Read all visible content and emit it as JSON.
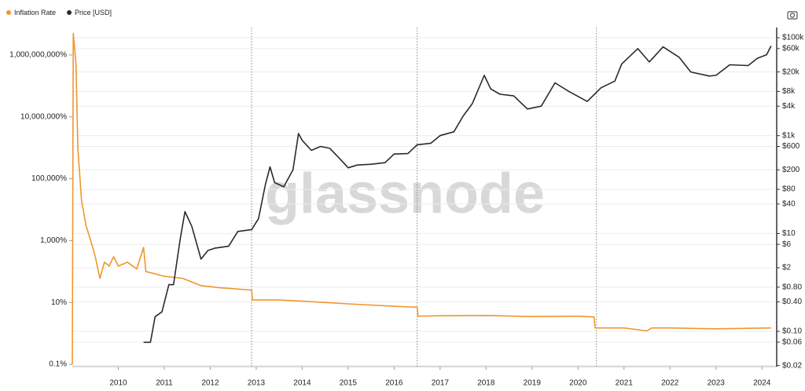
{
  "chart_data": {
    "type": "line",
    "watermark": "glassnode",
    "legend": "top-left",
    "ylog": true,
    "y2log": true,
    "grid": true,
    "xlim": [
      2009,
      2024.27
    ],
    "xticks": [
      2010,
      2011,
      2012,
      2013,
      2014,
      2015,
      2016,
      2017,
      2018,
      2019,
      2020,
      2021,
      2022,
      2023,
      2024
    ],
    "ylim": [
      0.084,
      7700000000
    ],
    "yticks": [
      {
        "value": 0.1,
        "label": "0.1%"
      },
      {
        "value": 10,
        "label": "10%"
      },
      {
        "value": 1000,
        "label": "1,000%"
      },
      {
        "value": 100000,
        "label": "100,000%"
      },
      {
        "value": 10000000,
        "label": "10,000,000%"
      },
      {
        "value": 1000000000,
        "label": "1,000,000,000%"
      }
    ],
    "y2lim": [
      0.019,
      162000
    ],
    "y2ticks": [
      {
        "value": 100000,
        "label": "$100k"
      },
      {
        "value": 60000,
        "label": "$60k"
      },
      {
        "value": 20000,
        "label": "$20k"
      },
      {
        "value": 8000,
        "label": "$8k"
      },
      {
        "value": 4000,
        "label": "$4k"
      },
      {
        "value": 1000,
        "label": "$1k"
      },
      {
        "value": 600,
        "label": "$600"
      },
      {
        "value": 200,
        "label": "$200"
      },
      {
        "value": 80,
        "label": "$80"
      },
      {
        "value": 40,
        "label": "$40"
      },
      {
        "value": 10,
        "label": "$10"
      },
      {
        "value": 6,
        "label": "$6"
      },
      {
        "value": 2,
        "label": "$2"
      },
      {
        "value": 0.8,
        "label": "$0.80"
      },
      {
        "value": 0.4,
        "label": "$0.40"
      },
      {
        "value": 0.1,
        "label": "$0.10"
      },
      {
        "value": 0.06,
        "label": "$0.06"
      },
      {
        "value": 0.02,
        "label": "$0.02"
      }
    ],
    "vlines": [
      2012.9,
      2016.5,
      2020.4
    ],
    "series": [
      {
        "name": "Inflation Rate",
        "color": "#f0962e",
        "x": [
          2009.0,
          2009.02,
          2009.08,
          2009.12,
          2009.2,
          2009.3,
          2009.4,
          2009.5,
          2009.6,
          2009.7,
          2009.8,
          2009.9,
          2010.0,
          2010.2,
          2010.4,
          2010.55,
          2010.6,
          2011.0,
          2011.4,
          2011.8,
          2012.2,
          2012.9,
          2012.92,
          2013.5,
          2014.0,
          2015.0,
          2016.0,
          2016.5,
          2016.52,
          2017.0,
          2018.0,
          2019.0,
          2020.0,
          2020.35,
          2020.37,
          2021.0,
          2021.5,
          2021.6,
          2022.0,
          2023.0,
          2024.2
        ],
        "values": [
          0.1,
          5000000000,
          500000000,
          1000000,
          20000,
          3000,
          1000,
          300,
          60,
          200,
          150,
          300,
          150,
          200,
          120,
          600,
          100,
          70,
          60,
          35,
          30,
          25,
          12,
          12,
          11,
          9,
          7.5,
          7,
          3.6,
          3.7,
          3.8,
          3.5,
          3.6,
          3.4,
          1.5,
          1.5,
          1.2,
          1.5,
          1.5,
          1.4,
          1.5
        ]
      },
      {
        "name": "Price [USD]",
        "color": "#2b2b2b",
        "axis": "y2",
        "x": [
          2010.55,
          2010.7,
          2010.8,
          2010.95,
          2011.1,
          2011.2,
          2011.35,
          2011.45,
          2011.6,
          2011.8,
          2011.95,
          2012.1,
          2012.4,
          2012.6,
          2012.9,
          2013.05,
          2013.2,
          2013.3,
          2013.4,
          2013.6,
          2013.8,
          2013.92,
          2014.0,
          2014.2,
          2014.4,
          2014.6,
          2014.8,
          2015.0,
          2015.2,
          2015.5,
          2015.8,
          2016.0,
          2016.3,
          2016.5,
          2016.8,
          2017.0,
          2017.3,
          2017.5,
          2017.7,
          2017.96,
          2018.1,
          2018.3,
          2018.6,
          2018.9,
          2019.2,
          2019.5,
          2019.8,
          2020.2,
          2020.5,
          2020.8,
          2020.95,
          2021.3,
          2021.55,
          2021.85,
          2022.2,
          2022.45,
          2022.85,
          2023.0,
          2023.3,
          2023.7,
          2023.9,
          2024.1,
          2024.2
        ],
        "values": [
          0.06,
          0.06,
          0.2,
          0.25,
          0.9,
          0.9,
          8,
          28,
          14,
          3,
          4.5,
          5,
          5.5,
          11,
          12,
          20,
          100,
          230,
          110,
          90,
          200,
          1100,
          800,
          500,
          600,
          550,
          350,
          220,
          250,
          260,
          280,
          420,
          430,
          650,
          700,
          1000,
          1200,
          2500,
          4500,
          17000,
          9000,
          7000,
          6500,
          3500,
          4000,
          12000,
          8000,
          5000,
          9500,
          13000,
          29000,
          60000,
          32000,
          65000,
          40000,
          20000,
          16500,
          17000,
          28000,
          27000,
          38000,
          45000,
          68000
        ]
      }
    ]
  }
}
